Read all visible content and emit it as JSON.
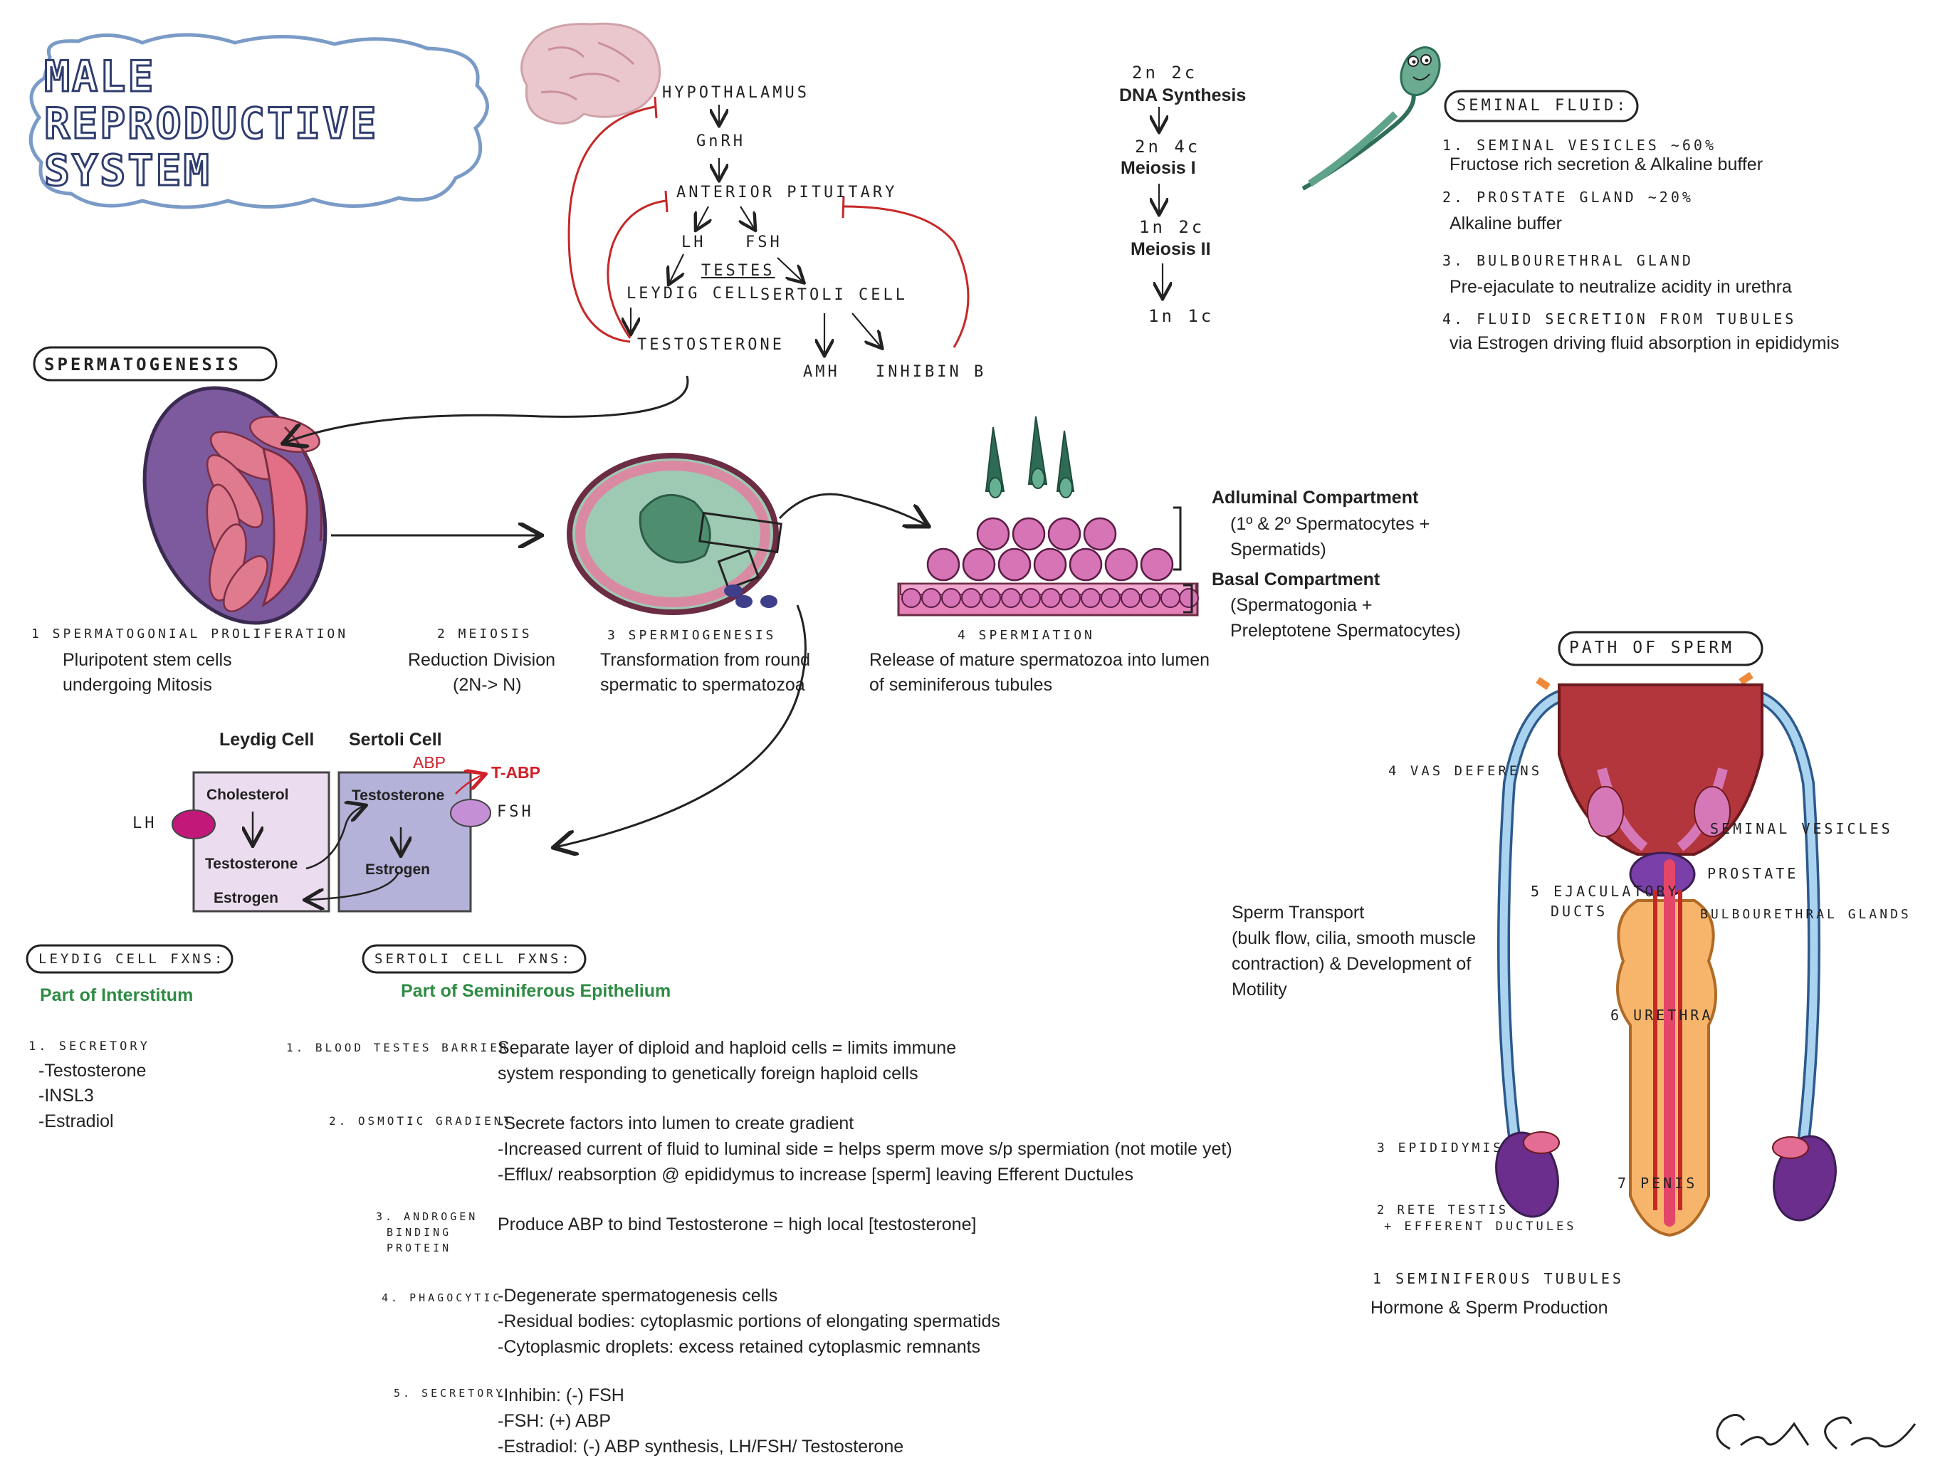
{
  "title": "MALE REPRODUCTIVE SYSTEM",
  "hormone_axis": {
    "hypothalamus": "HYPOTHALAMUS",
    "gnrh": "GnRH",
    "anterior_pituitary": "ANTERIOR PITUITARY",
    "lh": "LH",
    "fsh": "FSH",
    "testes": "TESTES",
    "leydig_cell": "LEYDIG CELL",
    "sertoli_cell": "SERTOLI CELL",
    "testosterone": "TESTOSTERONE",
    "amh": "AMH",
    "inhibin_b": "INHIBIN B"
  },
  "meiosis_chain": {
    "s1": "2n 2c",
    "dna_synthesis": "DNA Synthesis",
    "s2": "2n 4c",
    "meiosis_1": "Meiosis I",
    "s3": "1n 2c",
    "meiosis_2": "Meiosis II",
    "s4": "1n 1c"
  },
  "seminal_fluid": {
    "heading": "SEMINAL FLUID:",
    "item1_head": "1. SEMINAL VESICLES ~60%",
    "item1_text": "Fructose rich secretion & Alkaline buffer",
    "item2_head": "2. PROSTATE GLAND ~20%",
    "item2_text": "Alkaline buffer",
    "item3_head": "3. BULBOURETHRAL GLAND",
    "item3_text": "Pre-ejaculate to neutralize acidity in urethra",
    "item4_head": "4. FLUID SECRETION FROM TUBULES",
    "item4_text": "via Estrogen driving fluid absorption in epididymis"
  },
  "spermatogenesis": {
    "heading": "SPERMATOGENESIS",
    "step1_head": "1 SPERMATOGONIAL PROLIFERATION",
    "step1_l1": "Pluripotent stem cells",
    "step1_l2": "undergoing Mitosis",
    "step2_head": "2 MEIOSIS",
    "step2_l1": "Reduction Division",
    "step2_l2": "(2N-> N)",
    "step3_head": "3 SPERMIOGENESIS",
    "step3_l1": "Transformation from round",
    "step3_l2": "spermatic to spermatozoa",
    "step4_head": "4 SPERMIATION",
    "step4_l1": "Release of mature spermatozoa into lumen",
    "step4_l2": "of seminiferous tubules"
  },
  "compartments": {
    "adluminal_head": "Adluminal Compartment",
    "adluminal_l1": "(1º & 2º Spermatocytes +",
    "adluminal_l2": "Spermatids)",
    "basal_head": "Basal Compartment",
    "basal_l1": "(Spermatogonia +",
    "basal_l2": "Preleptotene Spermatocytes)"
  },
  "cells_diagram": {
    "leydig_title": "Leydig Cell",
    "sertoli_title": "Sertoli Cell",
    "abp": "ABP",
    "t_abp": "T-ABP",
    "lh": "LH",
    "fsh": "FSH",
    "cholesterol": "Cholesterol",
    "testosterone_l": "Testosterone",
    "estrogen_l": "Estrogen",
    "testosterone_s": "Testosterone",
    "estrogen_s": "Estrogen",
    "colors": {
      "leydig_box": "#ecdcef",
      "sertoli_box": "#b4b2d8",
      "lh_dot": "#c2187a",
      "fsh_dot": "#c58fd6"
    }
  },
  "leydig_fxns": {
    "heading": "LEYDIG CELL FXNS:",
    "sub": "Part of Interstitum",
    "item_head": "1. SECRETORY",
    "items": [
      "-Testosterone",
      "-INSL3",
      "-Estradiol"
    ]
  },
  "sertoli_fxns": {
    "heading": "SERTOLI CELL FXNS:",
    "sub": "Part of Seminiferous Epithelium",
    "f1_head": "1. BLOOD TESTES BARRIER",
    "f1_lines": [
      "Separate layer of diploid and haploid cells = limits immune",
      "system responding to genetically foreign haploid cells"
    ],
    "f2_head": "2. OSMOTIC GRADIENT",
    "f2_lines": [
      "-Secrete factors into lumen to create gradient",
      "-Increased current of fluid to luminal side = helps sperm move s/p spermiation (not motile yet)",
      "-Efflux/ reabsorption @ epididymus to increase [sperm] leaving Efferent Ductules"
    ],
    "f3_head": [
      "3. ANDROGEN",
      "BINDING",
      "PROTEIN"
    ],
    "f3_lines": [
      "Produce ABP to bind Testosterone = high local [testosterone]"
    ],
    "f4_head": "4. PHAGOCYTIC",
    "f4_lines": [
      "-Degenerate spermatogenesis cells",
      "-Residual bodies: cytoplasmic portions of elongating spermatids",
      "-Cytoplasmic droplets: excess retained cytoplasmic remnants"
    ],
    "f5_head": "5. SECRETORY",
    "f5_lines": [
      "-Inhibin: (-) FSH",
      "-FSH: (+) ABP",
      "-Estradiol: (-) ABP synthesis, LH/FSH/ Testosterone"
    ]
  },
  "path_of_sperm": {
    "heading": "PATH OF SPERM",
    "vas_deferens": "4 VAS DEFERENS",
    "seminal_vesicles": "SEMINAL VESICLES",
    "prostate": "PROSTATE",
    "ejaculatory_1": "5 EJACULATORY",
    "ejaculatory_2": "DUCTS",
    "bulbourethral": "BULBOURETHRAL GLANDS",
    "urethra": "6 URETHRA",
    "epididymis": "3 EPIDIDYMIS",
    "penis": "7 PENIS",
    "rete_1": "2 RETE TESTIS",
    "rete_2": "+ EFFERENT DUCTULES",
    "seminiferous": "1 SEMINIFEROUS TUBULES",
    "seminiferous_text": "Hormone & Sperm Production",
    "transport_lines": [
      "Sperm Transport",
      "(bulk flow, cilia, smooth muscle",
      "contraction) & Development of",
      "Motility"
    ]
  }
}
